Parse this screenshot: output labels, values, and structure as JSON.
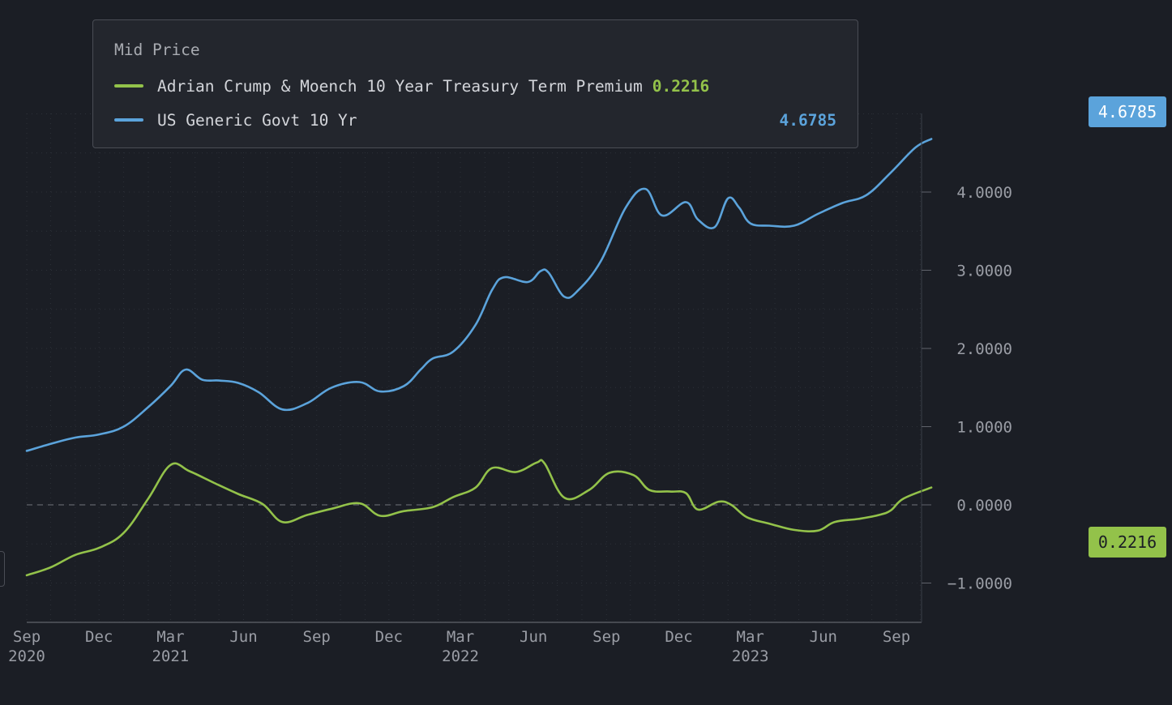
{
  "legend": {
    "title": "Mid Price",
    "series": [
      {
        "name": "Adrian Crump & Moench 10 Year Treasury Term Premium",
        "value": "0.2216",
        "color": "#93c24a"
      },
      {
        "name": "US Generic Govt 10 Yr",
        "value": "4.6785",
        "color": "#5ba3db"
      }
    ]
  },
  "end_tags": {
    "yield": {
      "label": "4.6785",
      "color": "#5ba3db",
      "text_color": "#ffffff"
    },
    "term_premium": {
      "label": "0.2216",
      "color": "#93c24a",
      "text_color": "#1b1e25"
    }
  },
  "chart_data": {
    "type": "line",
    "title": "Mid Price",
    "xlabel": "",
    "ylabel": "",
    "x_range": [
      "2020-09-01",
      "2023-10-15"
    ],
    "ylim": [
      -1.5,
      5.0
    ],
    "y_ticks": [
      {
        "value": 4,
        "label": "4.0000"
      },
      {
        "value": 3,
        "label": "3.0000"
      },
      {
        "value": 2,
        "label": "2.0000"
      },
      {
        "value": 1,
        "label": "1.0000"
      },
      {
        "value": 0,
        "label": "0.0000"
      },
      {
        "value": -1,
        "label": "−1.0000"
      }
    ],
    "x_ticks": [
      {
        "date": "2020-09-01",
        "month": "Sep",
        "year": "2020"
      },
      {
        "date": "2020-12-01",
        "month": "Dec",
        "year": ""
      },
      {
        "date": "2021-03-01",
        "month": "Mar",
        "year": "2021"
      },
      {
        "date": "2021-06-01",
        "month": "Jun",
        "year": ""
      },
      {
        "date": "2021-09-01",
        "month": "Sep",
        "year": ""
      },
      {
        "date": "2021-12-01",
        "month": "Dec",
        "year": ""
      },
      {
        "date": "2022-03-01",
        "month": "Mar",
        "year": "2022"
      },
      {
        "date": "2022-06-01",
        "month": "Jun",
        "year": ""
      },
      {
        "date": "2022-09-01",
        "month": "Sep",
        "year": ""
      },
      {
        "date": "2022-12-01",
        "month": "Dec",
        "year": ""
      },
      {
        "date": "2023-03-01",
        "month": "Mar",
        "year": "2023"
      },
      {
        "date": "2023-06-01",
        "month": "Jun",
        "year": ""
      },
      {
        "date": "2023-09-01",
        "month": "Sep",
        "year": ""
      }
    ],
    "zero_line": true,
    "grid": true,
    "series": [
      {
        "name": "US Generic Govt 10 Yr",
        "color": "#5ba3db",
        "last_value": 4.6785,
        "points": [
          [
            "2020-09-01",
            0.69
          ],
          [
            "2020-10-01",
            0.78
          ],
          [
            "2020-11-01",
            0.86
          ],
          [
            "2020-12-01",
            0.9
          ],
          [
            "2021-01-01",
            1.0
          ],
          [
            "2021-02-01",
            1.25
          ],
          [
            "2021-03-01",
            1.52
          ],
          [
            "2021-03-20",
            1.73
          ],
          [
            "2021-04-10",
            1.6
          ],
          [
            "2021-05-01",
            1.59
          ],
          [
            "2021-05-25",
            1.56
          ],
          [
            "2021-06-20",
            1.44
          ],
          [
            "2021-07-20",
            1.22
          ],
          [
            "2021-08-20",
            1.3
          ],
          [
            "2021-09-20",
            1.5
          ],
          [
            "2021-10-25",
            1.57
          ],
          [
            "2021-11-20",
            1.45
          ],
          [
            "2021-12-20",
            1.52
          ],
          [
            "2022-01-10",
            1.73
          ],
          [
            "2022-01-25",
            1.87
          ],
          [
            "2022-02-20",
            1.96
          ],
          [
            "2022-03-20",
            2.3
          ],
          [
            "2022-04-10",
            2.75
          ],
          [
            "2022-04-25",
            2.91
          ],
          [
            "2022-05-25",
            2.85
          ],
          [
            "2022-06-10",
            2.99
          ],
          [
            "2022-06-20",
            2.97
          ],
          [
            "2022-07-10",
            2.66
          ],
          [
            "2022-07-28",
            2.75
          ],
          [
            "2022-08-25",
            3.12
          ],
          [
            "2022-09-25",
            3.8
          ],
          [
            "2022-10-20",
            4.04
          ],
          [
            "2022-11-10",
            3.7
          ],
          [
            "2022-12-10",
            3.87
          ],
          [
            "2022-12-25",
            3.65
          ],
          [
            "2023-01-15",
            3.55
          ],
          [
            "2023-02-01",
            3.92
          ],
          [
            "2023-02-15",
            3.8
          ],
          [
            "2023-03-01",
            3.6
          ],
          [
            "2023-03-25",
            3.57
          ],
          [
            "2023-04-25",
            3.57
          ],
          [
            "2023-05-25",
            3.72
          ],
          [
            "2023-06-25",
            3.86
          ],
          [
            "2023-07-25",
            3.96
          ],
          [
            "2023-08-25",
            4.25
          ],
          [
            "2023-09-25",
            4.57
          ],
          [
            "2023-10-15",
            4.6785
          ]
        ]
      },
      {
        "name": "Adrian Crump & Moench 10 Year Treasury Term Premium",
        "color": "#93c24a",
        "last_value": 0.2216,
        "points": [
          [
            "2020-09-01",
            -0.9
          ],
          [
            "2020-10-01",
            -0.8
          ],
          [
            "2020-11-01",
            -0.64
          ],
          [
            "2020-12-01",
            -0.55
          ],
          [
            "2021-01-01",
            -0.36
          ],
          [
            "2021-02-01",
            0.08
          ],
          [
            "2021-03-01",
            0.51
          ],
          [
            "2021-03-25",
            0.43
          ],
          [
            "2021-04-25",
            0.28
          ],
          [
            "2021-05-25",
            0.14
          ],
          [
            "2021-06-25",
            0.01
          ],
          [
            "2021-07-20",
            -0.22
          ],
          [
            "2021-08-20",
            -0.13
          ],
          [
            "2021-09-20",
            -0.05
          ],
          [
            "2021-10-25",
            0.02
          ],
          [
            "2021-11-20",
            -0.14
          ],
          [
            "2021-12-20",
            -0.08
          ],
          [
            "2022-01-25",
            -0.03
          ],
          [
            "2022-02-20",
            0.1
          ],
          [
            "2022-03-20",
            0.22
          ],
          [
            "2022-04-10",
            0.47
          ],
          [
            "2022-05-10",
            0.42
          ],
          [
            "2022-06-05",
            0.54
          ],
          [
            "2022-06-15",
            0.53
          ],
          [
            "2022-07-10",
            0.09
          ],
          [
            "2022-08-10",
            0.19
          ],
          [
            "2022-09-05",
            0.41
          ],
          [
            "2022-10-05",
            0.38
          ],
          [
            "2022-10-25",
            0.19
          ],
          [
            "2022-11-20",
            0.17
          ],
          [
            "2022-12-10",
            0.15
          ],
          [
            "2022-12-25",
            -0.06
          ],
          [
            "2023-01-20",
            0.04
          ],
          [
            "2023-02-05",
            0.0
          ],
          [
            "2023-02-25",
            -0.16
          ],
          [
            "2023-03-25",
            -0.24
          ],
          [
            "2023-04-25",
            -0.32
          ],
          [
            "2023-05-25",
            -0.33
          ],
          [
            "2023-06-15",
            -0.22
          ],
          [
            "2023-07-15",
            -0.18
          ],
          [
            "2023-08-10",
            -0.13
          ],
          [
            "2023-08-25",
            -0.07
          ],
          [
            "2023-09-10",
            0.08
          ],
          [
            "2023-10-15",
            0.2216
          ]
        ]
      }
    ]
  }
}
